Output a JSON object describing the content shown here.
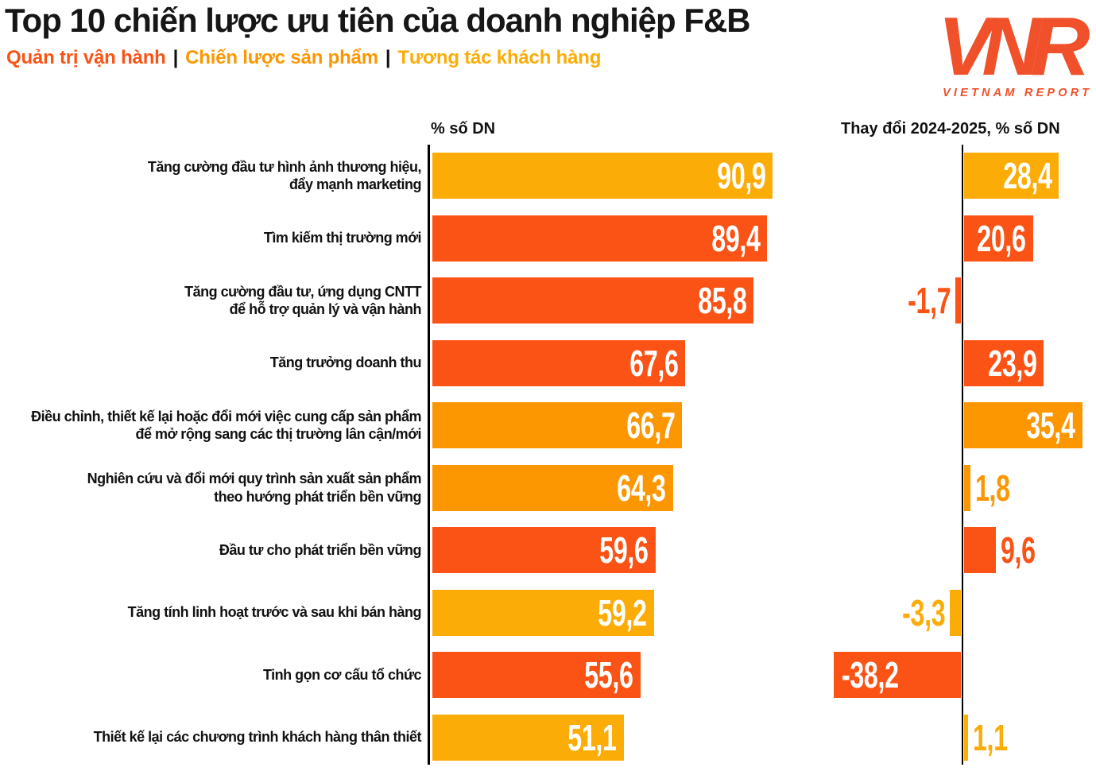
{
  "title": "Top 10 chiến lược ưu tiên của doanh nghiệp F&B",
  "legend": {
    "separator": "|",
    "items": [
      {
        "key": "operations",
        "label": "Quản trị vận hành",
        "color": "#FB5316"
      },
      {
        "key": "product",
        "label": "Chiến lược sản phẩm",
        "color": "#FC9702"
      },
      {
        "key": "customer",
        "label": "Tương tác khách hàng",
        "color": "#FCAC07"
      }
    ]
  },
  "logo": {
    "acronym": "VNR",
    "name": "VIETNAM REPORT",
    "color": "#F0502A"
  },
  "columns": {
    "left_header": "% số DN",
    "right_header": "Thay đổi 2024-2025, % số DN"
  },
  "chart_data": {
    "type": "bar",
    "orientation": "horizontal",
    "title": "Top 10 chiến lược ưu tiên của doanh nghiệp F&B",
    "categories": [
      "Tăng cường đầu tư hình ảnh thương hiệu,\nđẩy mạnh marketing",
      "Tìm kiếm thị trường mới",
      "Tăng cường đầu tư, ứng dụng CNTT\nđể hỗ trợ quản lý và vận hành",
      "Tăng trưởng doanh thu",
      "Điều chỉnh, thiết kế lại hoặc đổi mới việc cung cấp sản phẩm\nđể mở rộng sang các thị trường lân cận/mới",
      "Nghiên cứu và đổi mới quy trình sản xuất sản phẩm\ntheo hướng phát triển bền vững",
      "Đầu tư cho phát triển bền vững",
      "Tăng tính linh hoạt trước và sau khi bán hàng",
      "Tinh gọn cơ cấu tổ chức",
      "Thiết kế lại các chương trình khách hàng thân thiết"
    ],
    "series": [
      {
        "name": "% số DN",
        "values": [
          90.9,
          89.4,
          85.8,
          67.6,
          66.7,
          64.3,
          59.6,
          59.2,
          55.6,
          51.1
        ]
      },
      {
        "name": "Thay đổi 2024-2025, % số DN",
        "values": [
          28.4,
          20.6,
          -1.7,
          23.9,
          35.4,
          1.8,
          9.6,
          -3.3,
          -38.2,
          1.1
        ]
      }
    ],
    "groups": [
      "customer",
      "operations",
      "operations",
      "operations",
      "product",
      "product",
      "operations",
      "customer",
      "operations",
      "customer"
    ],
    "value_format": "decimal-comma",
    "left_axis_range": [
      0,
      93.5
    ],
    "right_axis_range": [
      -42,
      40
    ],
    "grid": false,
    "legend_position": "top-left"
  }
}
